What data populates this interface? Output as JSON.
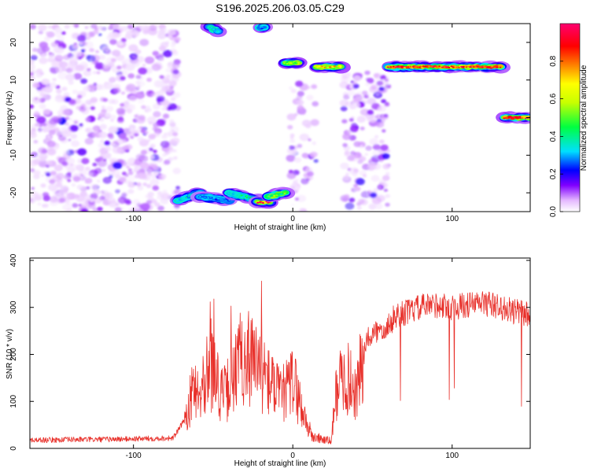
{
  "title": "S196.2025.206.03.05.C29",
  "chart_data": [
    {
      "type": "heatmap",
      "xlabel": "Height of straight line (km)",
      "ylabel": "Frequency (Hz)",
      "xlim": [
        -165,
        149
      ],
      "ylim": [
        -25,
        25
      ],
      "xticks": [
        -100,
        0,
        100
      ],
      "xtick_labels": [
        "-100",
        "0",
        "100"
      ],
      "yticks": [
        -20,
        -10,
        0,
        10,
        20
      ],
      "ytick_labels": [
        "-20",
        "-10",
        "0",
        "10",
        "20"
      ],
      "colorbar": {
        "label": "Normalized spectral amplitude",
        "range": [
          0,
          1
        ],
        "ticks": [
          0.0,
          0.2,
          0.4,
          0.6,
          0.8
        ],
        "tick_labels": [
          "0.0",
          "0.2",
          "0.4",
          "0.6",
          "0.8"
        ],
        "colormap": [
          "#ffffff",
          "#e0b0ff",
          "#8000ff",
          "#0000ff",
          "#00e0ff",
          "#00ff00",
          "#ffff00",
          "#ff8000",
          "#ff0000",
          "#ff0080"
        ]
      },
      "noise_regions": [
        {
          "x": [
            -165,
            -72
          ],
          "f": [
            -25,
            25
          ],
          "level": 0.2
        },
        {
          "x": [
            -2,
            15
          ],
          "f": [
            -25,
            10
          ],
          "level": 0.12
        },
        {
          "x": [
            32,
            60
          ],
          "f": [
            -25,
            12
          ],
          "level": 0.2
        }
      ],
      "signal_segments": [
        {
          "x": [
            -72,
            -58
          ],
          "f": [
            -22,
            -20
          ],
          "amp": 0.35
        },
        {
          "x": [
            -58,
            -40
          ],
          "f": [
            -21,
            -22
          ],
          "amp": 0.3
        },
        {
          "x": [
            -40,
            -22
          ],
          "f": [
            -20,
            -22
          ],
          "amp": 0.4
        },
        {
          "x": [
            -22,
            -15
          ],
          "f": [
            -22.5,
            -22.5
          ],
          "amp": 0.95
        },
        {
          "x": [
            -15,
            -5
          ],
          "f": [
            -21,
            -20
          ],
          "amp": 0.5
        },
        {
          "x": [
            -52,
            -47
          ],
          "f": [
            24,
            23
          ],
          "amp": 0.35
        },
        {
          "x": [
            -20,
            -18
          ],
          "f": [
            24,
            24
          ],
          "amp": 0.3
        },
        {
          "x": [
            -5,
            4
          ],
          "f": [
            14.5,
            14.5
          ],
          "amp": 0.55
        },
        {
          "x": [
            15,
            30
          ],
          "f": [
            13.5,
            13.5
          ],
          "amp": 0.7
        },
        {
          "x": [
            60,
            130
          ],
          "f": [
            13.5,
            13.5
          ],
          "amp": 0.9
        },
        {
          "x": [
            133,
            149
          ],
          "f": [
            0,
            0
          ],
          "amp": 0.95
        }
      ]
    },
    {
      "type": "line",
      "xlabel": "Height of straight line (km)",
      "ylabel": "SNR (10 * v/v)",
      "xlim": [
        -165,
        149
      ],
      "ylim": [
        0,
        405
      ],
      "xticks": [
        -100,
        0,
        100
      ],
      "xtick_labels": [
        "-100",
        "0",
        "100"
      ],
      "yticks": [
        0,
        100,
        200,
        300,
        400
      ],
      "ytick_labels": [
        "0",
        "100",
        "200",
        "300",
        "400"
      ],
      "color": "#e8302a",
      "x": [
        -165,
        -150,
        -135,
        -120,
        -105,
        -90,
        -75,
        -68,
        -62,
        -56,
        -50,
        -44,
        -38,
        -32,
        -26,
        -20,
        -14,
        -8,
        -2,
        0,
        6,
        12,
        18,
        24,
        28,
        34,
        40,
        44,
        48,
        54,
        60,
        66,
        72,
        80,
        90,
        100,
        110,
        120,
        130,
        140,
        149
      ],
      "y": [
        18,
        18,
        19,
        19,
        20,
        21,
        22,
        60,
        130,
        150,
        170,
        110,
        140,
        200,
        190,
        160,
        140,
        110,
        130,
        150,
        80,
        25,
        20,
        15,
        140,
        150,
        120,
        190,
        240,
        250,
        265,
        285,
        290,
        300,
        305,
        300,
        305,
        310,
        300,
        290,
        285
      ]
    }
  ]
}
